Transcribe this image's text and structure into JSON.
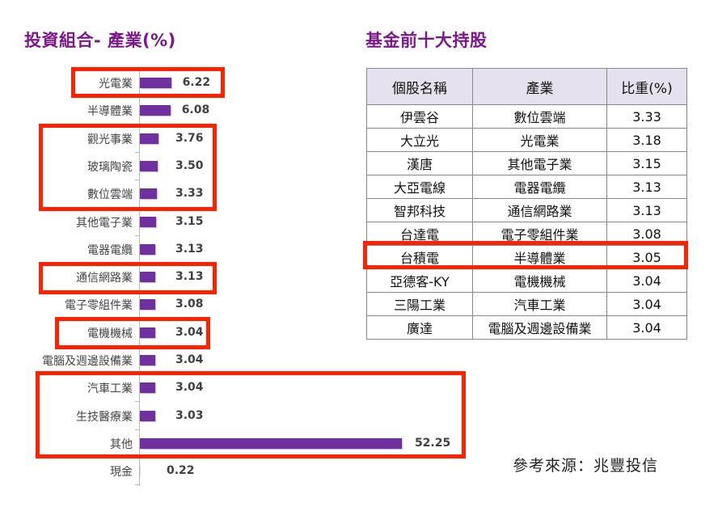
{
  "chart_title": "投資組合- 產業(%)",
  "table_title": "基金前十大持股",
  "source_note": "參考來源：兆豐投信",
  "colors": {
    "bar": "#7030a0",
    "title": "#7a1a8a",
    "highlight": "#ff2200",
    "table_header_bg": "#e6e1ee"
  },
  "chart_data": {
    "type": "bar",
    "orientation": "horizontal",
    "title": "投資組合- 產業(%)",
    "xlabel": "",
    "ylabel": "",
    "grid": false,
    "legend": null,
    "categories": [
      "光電業",
      "半導體業",
      "觀光事業",
      "玻璃陶瓷",
      "數位雲端",
      "其他電子業",
      "電器電纜",
      "通信網路業",
      "電子零組件業",
      "電機機械",
      "電腦及週邊設備業",
      "汽車工業",
      "生技醫療業",
      "其他",
      "現金"
    ],
    "values": [
      6.22,
      6.08,
      3.76,
      3.5,
      3.33,
      3.15,
      3.13,
      3.13,
      3.08,
      3.04,
      3.04,
      3.04,
      3.03,
      52.25,
      0.22
    ],
    "value_labels": [
      "6.22",
      "6.08",
      "3.76",
      "3.50",
      "3.33",
      "3.15",
      "3.13",
      "3.13",
      "3.08",
      "3.04",
      "3.04",
      "3.04",
      "3.03",
      "52.25",
      "0.22"
    ],
    "highlighted_groups": [
      [
        "光電業"
      ],
      [
        "觀光事業",
        "玻璃陶瓷",
        "數位雲端"
      ],
      [
        "通信網路業"
      ],
      [
        "電機機械"
      ],
      [
        "汽車工業",
        "生技醫療業",
        "其他"
      ]
    ]
  },
  "table": {
    "headers": [
      "個股名稱",
      "產業",
      "比重(%)"
    ],
    "rows": [
      [
        "伊雲谷",
        "數位雲端",
        "3.33"
      ],
      [
        "大立光",
        "光電業",
        "3.18"
      ],
      [
        "漢唐",
        "其他電子業",
        "3.15"
      ],
      [
        "大亞電線",
        "電器電纜",
        "3.13"
      ],
      [
        "智邦科技",
        "通信網路業",
        "3.13"
      ],
      [
        "台達電",
        "電子零組件業",
        "3.08"
      ],
      [
        "台積電",
        "半導體業",
        "3.05"
      ],
      [
        "亞德客-KY",
        "電機機械",
        "3.04"
      ],
      [
        "三陽工業",
        "汽車工業",
        "3.04"
      ],
      [
        "廣達",
        "電腦及週邊設備業",
        "3.04"
      ]
    ],
    "highlighted_row": 6
  }
}
